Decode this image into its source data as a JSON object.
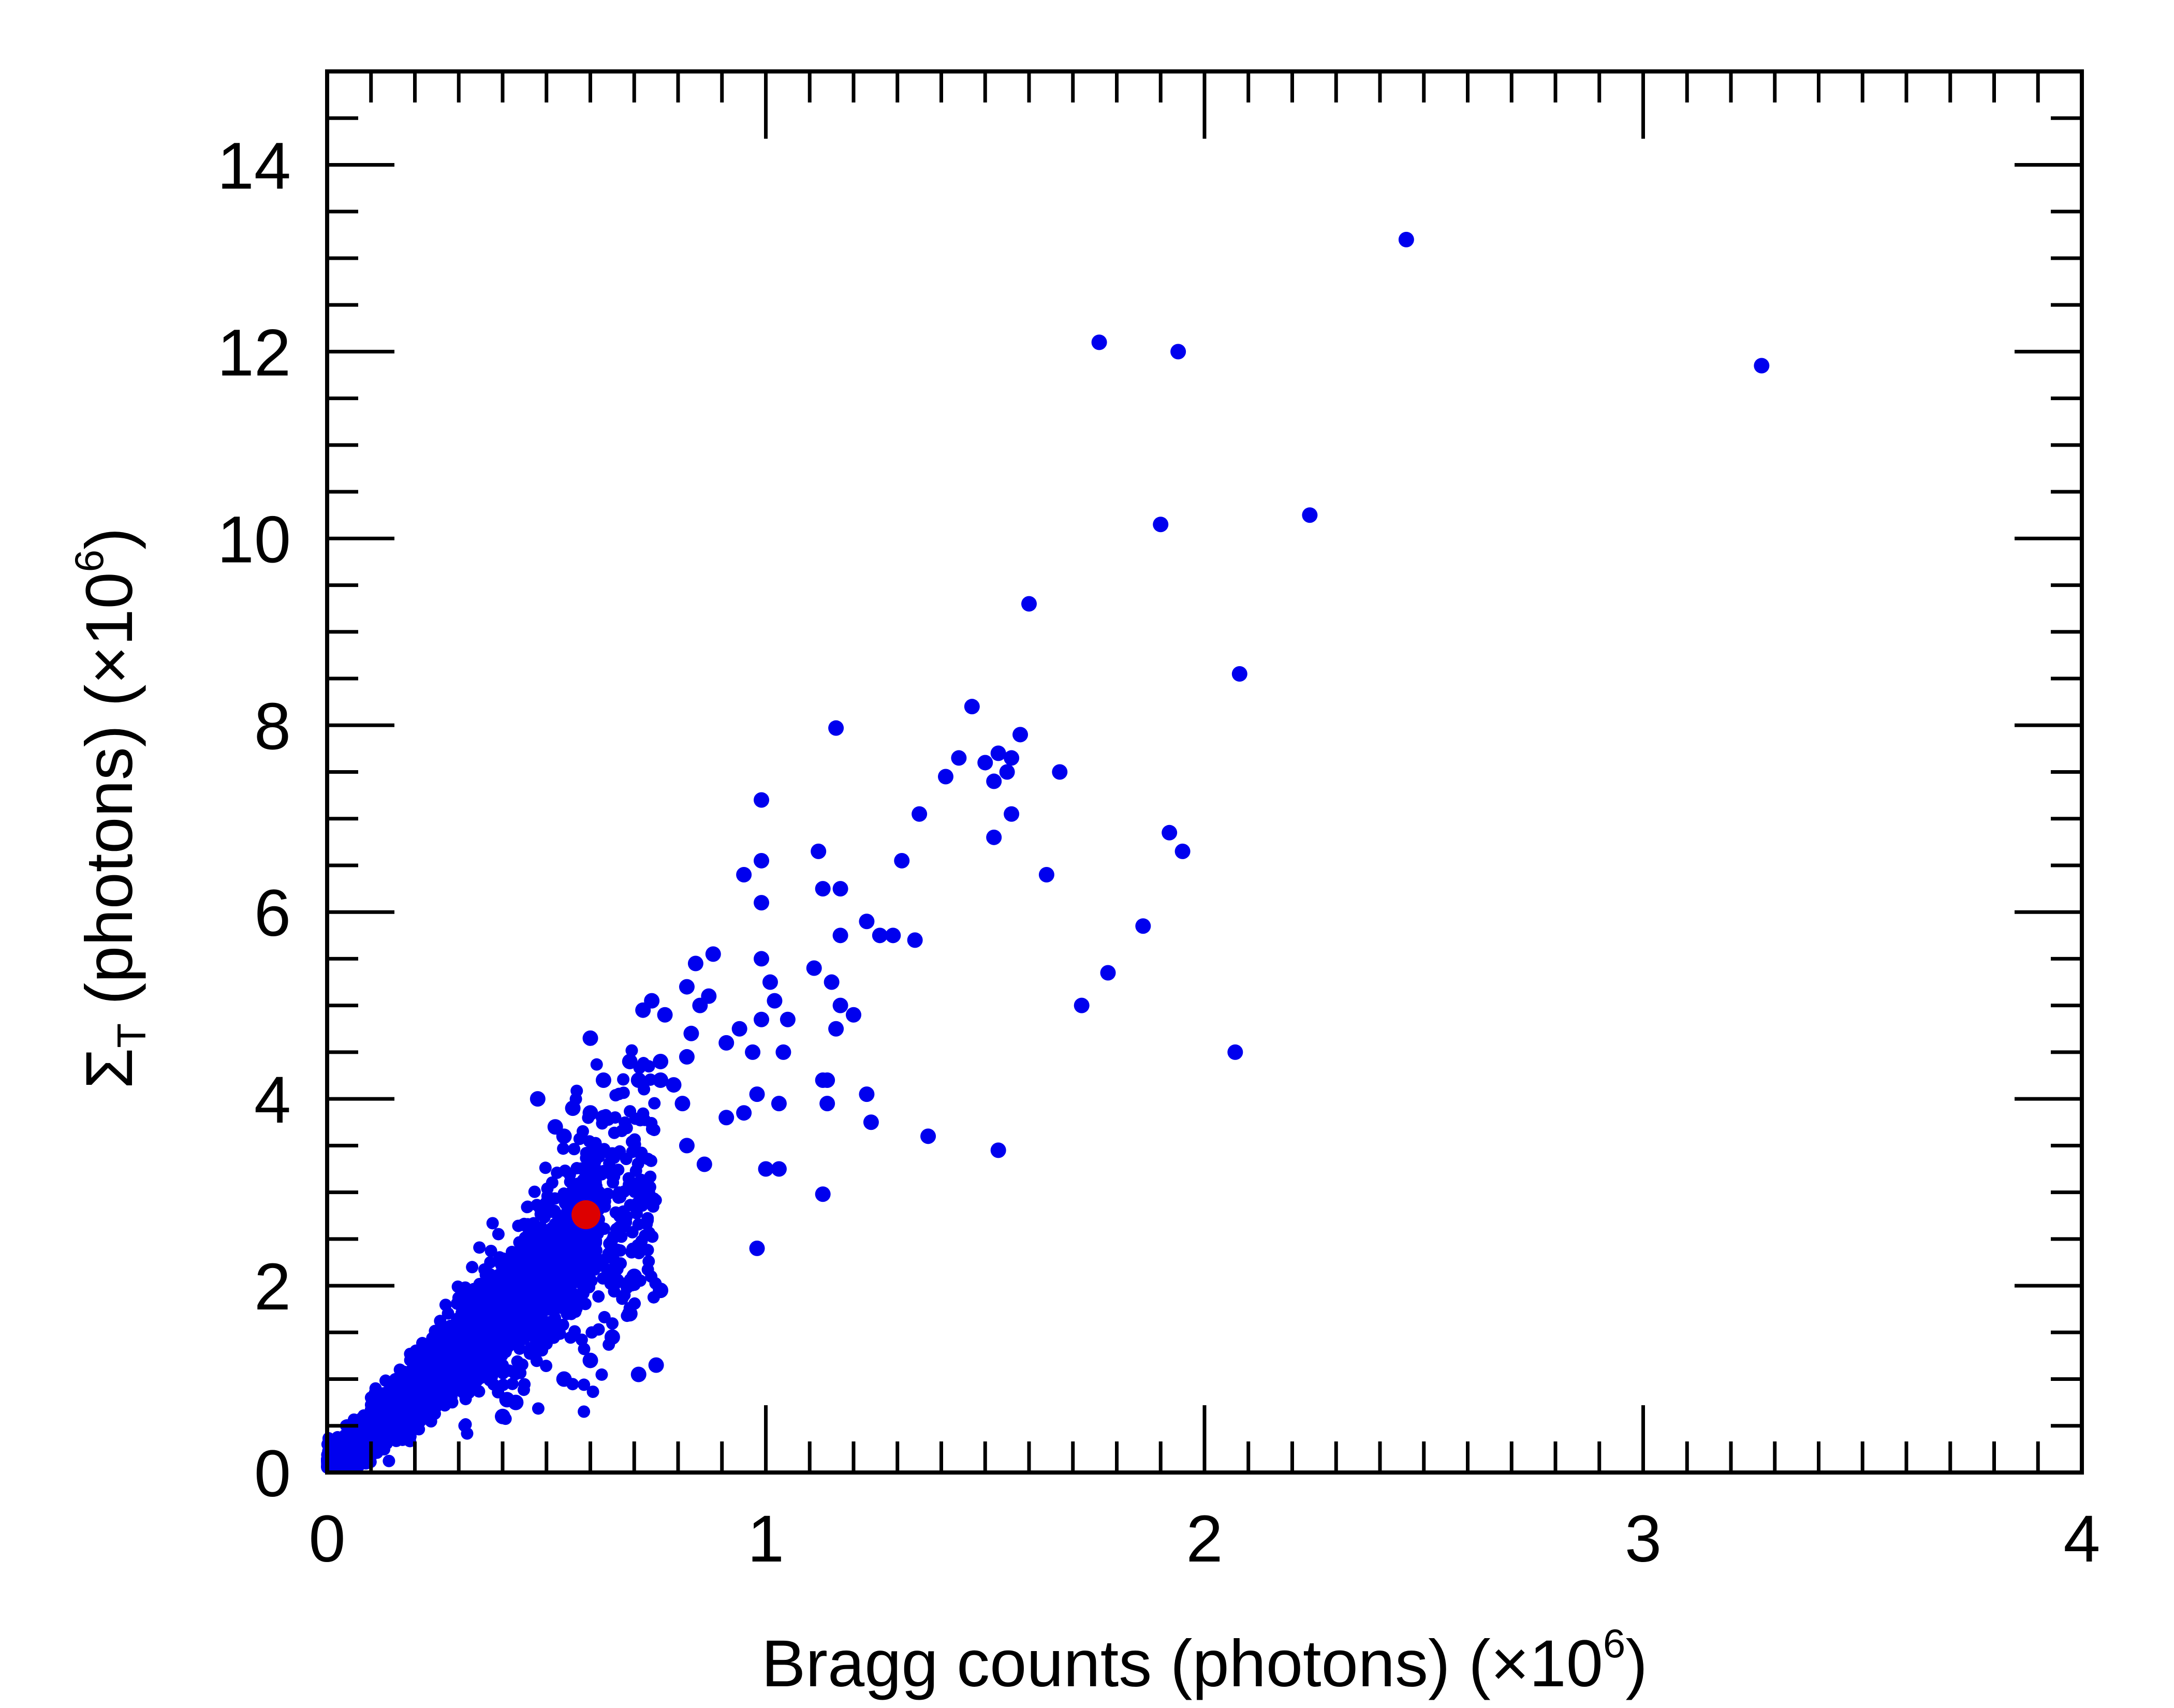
{
  "chart_data": {
    "type": "scatter",
    "title": "",
    "xlabel": {
      "prefix": "Bragg counts (photons) (×10",
      "exponent": "6",
      "suffix": ")"
    },
    "ylabel": {
      "symbol": "Σ",
      "subscript": "T",
      "middle": " (photons) (×10",
      "exponent": "6",
      "suffix": ")"
    },
    "xlim": [
      0,
      4
    ],
    "ylim": [
      0,
      15
    ],
    "x_ticks": [
      0,
      1,
      2,
      3,
      4
    ],
    "x_tick_labels": [
      "0",
      "1",
      "2",
      "3",
      "4"
    ],
    "y_ticks": [
      0,
      2,
      4,
      6,
      8,
      10,
      12,
      14
    ],
    "y_tick_labels": [
      "0",
      "2",
      "4",
      "6",
      "8",
      "10",
      "12",
      "14"
    ],
    "grid": false,
    "legend": "none",
    "colors": {
      "series": "#0000ee",
      "highlight": "#dd0000",
      "axis": "#000000"
    },
    "series": [
      {
        "color": "#0000ee",
        "points": [
          [
            2.46,
            13.2
          ],
          [
            1.76,
            12.1
          ],
          [
            1.94,
            12.0
          ],
          [
            3.27,
            11.85
          ],
          [
            2.24,
            10.25
          ],
          [
            1.9,
            10.15
          ],
          [
            1.6,
            9.3
          ],
          [
            2.08,
            8.55
          ],
          [
            1.47,
            8.2
          ],
          [
            1.58,
            7.9
          ],
          [
            1.16,
            7.97
          ],
          [
            1.44,
            7.65
          ],
          [
            1.5,
            7.6
          ],
          [
            1.53,
            7.7
          ],
          [
            1.56,
            7.65
          ],
          [
            1.55,
            7.5
          ],
          [
            1.52,
            7.4
          ],
          [
            1.67,
            7.5
          ],
          [
            1.41,
            7.45
          ],
          [
            1.35,
            7.05
          ],
          [
            1.56,
            7.05
          ],
          [
            0.99,
            7.2
          ],
          [
            1.52,
            6.8
          ],
          [
            1.92,
            6.85
          ],
          [
            1.95,
            6.65
          ],
          [
            1.12,
            6.65
          ],
          [
            0.99,
            6.55
          ],
          [
            1.31,
            6.55
          ],
          [
            0.95,
            6.4
          ],
          [
            1.64,
            6.4
          ],
          [
            1.13,
            6.25
          ],
          [
            1.17,
            6.25
          ],
          [
            0.99,
            6.1
          ],
          [
            1.23,
            5.9
          ],
          [
            1.26,
            5.75
          ],
          [
            1.29,
            5.75
          ],
          [
            1.17,
            5.75
          ],
          [
            1.34,
            5.7
          ],
          [
            1.86,
            5.85
          ],
          [
            0.88,
            5.55
          ],
          [
            0.99,
            5.5
          ],
          [
            0.84,
            5.45
          ],
          [
            1.11,
            5.4
          ],
          [
            1.78,
            5.35
          ],
          [
            1.01,
            5.25
          ],
          [
            1.15,
            5.25
          ],
          [
            0.82,
            5.2
          ],
          [
            0.87,
            5.1
          ],
          [
            0.85,
            5.0
          ],
          [
            1.02,
            5.05
          ],
          [
            0.74,
            5.05
          ],
          [
            1.72,
            5.0
          ],
          [
            1.17,
            5.0
          ],
          [
            1.2,
            4.9
          ],
          [
            0.72,
            4.95
          ],
          [
            0.77,
            4.9
          ],
          [
            0.99,
            4.85
          ],
          [
            1.05,
            4.85
          ],
          [
            0.94,
            4.75
          ],
          [
            1.16,
            4.75
          ],
          [
            0.83,
            4.7
          ],
          [
            0.6,
            4.65
          ],
          [
            0.91,
            4.6
          ],
          [
            0.97,
            4.5
          ],
          [
            1.04,
            4.5
          ],
          [
            2.07,
            4.5
          ],
          [
            0.82,
            4.45
          ],
          [
            0.76,
            4.4
          ],
          [
            0.69,
            4.4
          ],
          [
            1.13,
            4.2
          ],
          [
            1.14,
            4.2
          ],
          [
            0.63,
            4.2
          ],
          [
            0.71,
            4.2
          ],
          [
            0.76,
            4.2
          ],
          [
            0.79,
            4.15
          ],
          [
            0.98,
            4.05
          ],
          [
            1.23,
            4.05
          ],
          [
            0.48,
            4.0
          ],
          [
            0.81,
            3.95
          ],
          [
            1.03,
            3.95
          ],
          [
            1.14,
            3.95
          ],
          [
            0.95,
            3.85
          ],
          [
            0.91,
            3.8
          ],
          [
            0.56,
            3.9
          ],
          [
            0.6,
            3.85
          ],
          [
            0.63,
            3.8
          ],
          [
            1.24,
            3.75
          ],
          [
            1.37,
            3.6
          ],
          [
            0.52,
            3.7
          ],
          [
            0.54,
            3.6
          ],
          [
            1.53,
            3.45
          ],
          [
            0.82,
            3.5
          ],
          [
            0.65,
            3.4
          ],
          [
            1.0,
            3.25
          ],
          [
            1.03,
            3.25
          ],
          [
            0.86,
            3.3
          ],
          [
            1.13,
            2.98
          ],
          [
            0.98,
            2.4
          ],
          [
            0.76,
            1.95
          ],
          [
            0.69,
            1.7
          ],
          [
            0.65,
            1.45
          ],
          [
            0.75,
            1.15
          ],
          [
            0.71,
            1.05
          ],
          [
            0.54,
            1.0
          ],
          [
            0.43,
            0.75
          ],
          [
            0.4,
            0.6
          ],
          [
            0.41,
            0.78
          ],
          [
            0.6,
            1.2
          ],
          [
            0.66,
            2.05
          ],
          [
            0.7,
            2.1
          ]
        ]
      },
      {
        "color": "#0000ee",
        "cluster": true,
        "points_note": ""
      }
    ],
    "highlight_point": {
      "x": 0.59,
      "y": 2.76,
      "color": "#dd0000"
    }
  }
}
